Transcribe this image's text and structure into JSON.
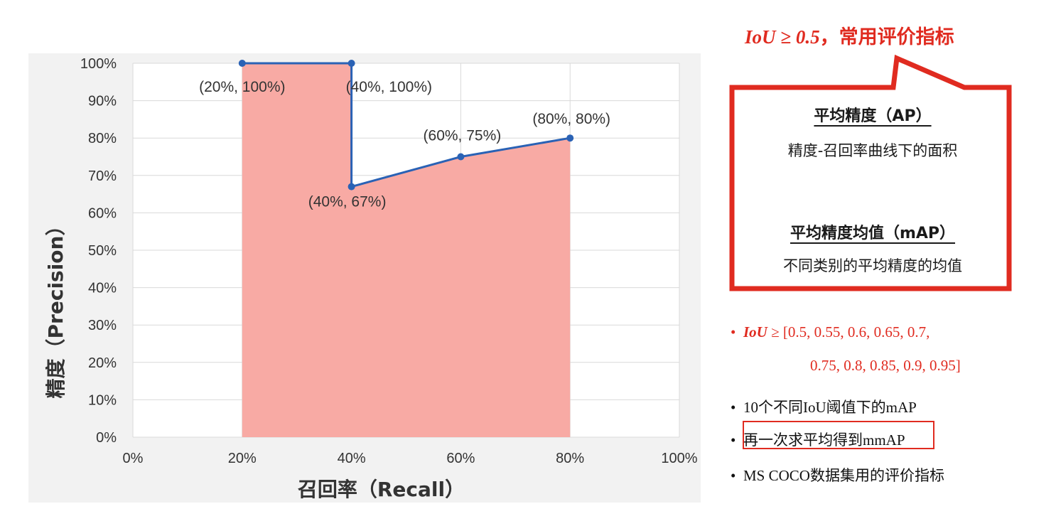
{
  "chart_data": {
    "type": "area",
    "x": [
      20,
      40,
      40,
      60,
      80
    ],
    "y": [
      100,
      100,
      67,
      75,
      80
    ],
    "xlabel": "召回率（Recall）",
    "ylabel": "精度（Precision）",
    "xlim": [
      0,
      100
    ],
    "ylim": [
      0,
      100
    ],
    "x_ticks": [
      "0%",
      "20%",
      "40%",
      "60%",
      "80%",
      "100%"
    ],
    "y_ticks": [
      "0%",
      "10%",
      "20%",
      "30%",
      "40%",
      "50%",
      "60%",
      "70%",
      "80%",
      "90%",
      "100%"
    ],
    "grid": true,
    "line_color": "#2a62b5",
    "fill_color": "#f8aaa4",
    "point_labels": [
      "(20%, 100%)",
      "(40%, 100%)",
      "(40%, 67%)",
      "(60%, 75%)",
      "(80%, 80%)"
    ]
  },
  "callout": {
    "heading_iou": "IoU ≥ 0.5",
    "heading_rest": "，常用评价指标",
    "ap_title": "平均精度（AP）",
    "ap_desc": "精度-召回率曲线下的面积",
    "map_title": "平均精度均值（mAP）",
    "map_desc": "不同类别的平均精度的均值",
    "accent_color": "#e02b20"
  },
  "bullets": {
    "iou_prefix": "IoU",
    "iou_line1": " ≥ [0.5, 0.55, 0.6, 0.65, 0.7,",
    "iou_line2": "0.75, 0.8, 0.85, 0.9, 0.95]",
    "item1": "10个不同IoU阈值下的mAP",
    "item2": "再一次求平均得到mmAP",
    "item3": "MS COCO数据集用的评价指标",
    "bullet_char": "•"
  }
}
